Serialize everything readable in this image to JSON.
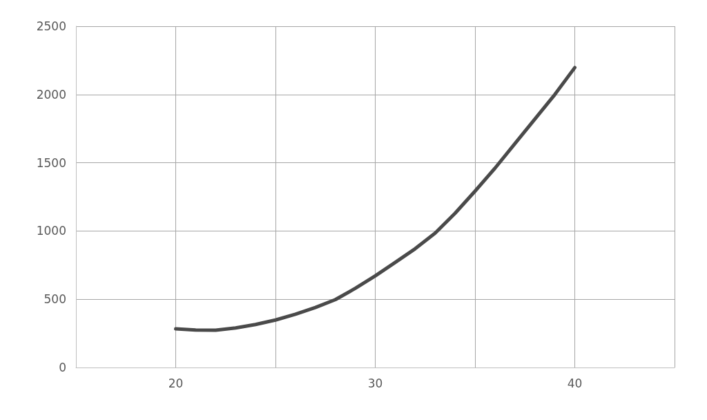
{
  "chart_data": {
    "type": "line",
    "x": [
      20,
      21,
      22,
      23,
      24,
      25,
      26,
      27,
      28,
      29,
      30,
      31,
      32,
      33,
      34,
      35,
      36,
      37,
      38,
      39,
      40
    ],
    "series": [
      {
        "color": "#4a4a4a",
        "values": [
          283,
          275,
          273,
          290,
          315,
          348,
          390,
          440,
          497,
          580,
          671,
          770,
          870,
          984,
          1130,
          1292,
          1460,
          1640,
          1820,
          2000,
          2197
        ]
      }
    ],
    "xlim": [
      15,
      45
    ],
    "xticks": [
      {
        "value": 15,
        "label": null
      },
      20,
      {
        "value": 25,
        "label": null
      },
      30,
      {
        "value": 35,
        "label": null
      },
      40,
      {
        "value": 45,
        "label": null
      }
    ],
    "ylim": [
      0,
      2500
    ],
    "yticks": [
      0,
      500,
      1000,
      1500,
      2000,
      2500
    ],
    "grid": true,
    "marker": "none",
    "line_style": "solid"
  }
}
